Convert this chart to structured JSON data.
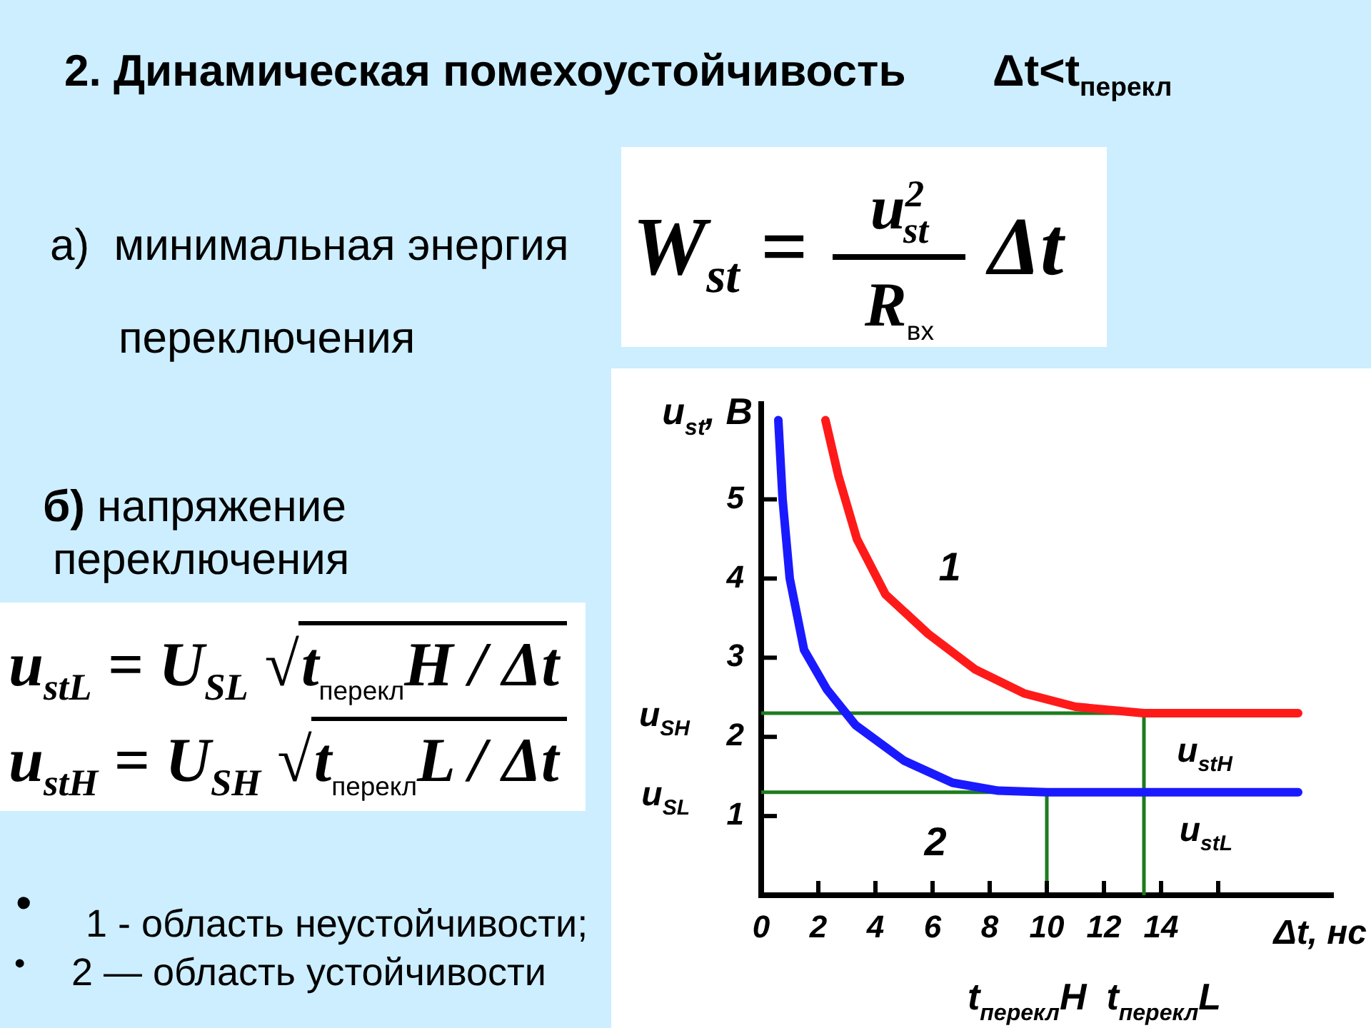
{
  "chart_data": {
    "type": "line",
    "title": "2. Динамическая помехоустойчивость",
    "subtitle": "Δt<t$_{перекл}$",
    "xlabel": "Δt, нс",
    "ylabel": "u$_{st}$, В",
    "xlim": [
      0,
      20
    ],
    "xticks": [
      0,
      2,
      4,
      6,
      8,
      10,
      12,
      14,
      {
        "value": 16,
        "label": null
      }
    ],
    "ylim": [
      0,
      6.2
    ],
    "yticks": [
      1,
      2,
      3,
      4,
      5
    ],
    "grid": false,
    "legend": false,
    "marker": "none",
    "series": [
      {
        "name": "u$_{stH}$",
        "color": "#ff1a1a",
        "x": [
          2.25,
          2.7,
          3.35,
          4.35,
          5.85,
          7.5,
          9.2,
          11,
          13.4,
          18.8
        ],
        "values": [
          6.0,
          5.3,
          4.5,
          3.8,
          3.3,
          2.85,
          2.55,
          2.38,
          2.3,
          2.3
        ]
      },
      {
        "name": "u$_{stL}$",
        "color": "#1a1aff",
        "x": [
          0.6,
          0.75,
          1.0,
          1.5,
          2.3,
          3.3,
          5,
          6.7,
          8.3,
          10,
          18.8
        ],
        "values": [
          6.0,
          5.0,
          4.0,
          3.1,
          2.6,
          2.15,
          1.7,
          1.42,
          1.32,
          1.3,
          1.3
        ]
      },
      {
        "color": "#1e7b1e",
        "x": [
          0,
          13.4,
          13.4
        ],
        "values": [
          2.3,
          2.3,
          0
        ]
      },
      {
        "color": "#1e7b1e",
        "x": [
          0,
          10,
          10
        ],
        "values": [
          1.3,
          1.3,
          0
        ]
      }
    ],
    "annotations": [
      "а)  минимальная энергия",
      "переключения",
      "б)",
      "напряжение",
      "переключения",
      "W$_{st}$ =",
      "u$^{2}$$_{st}$",
      "R$_{вх}$",
      "Δt",
      "u$_{stL}$ = U$_{SL}$ √",
      "t$_{перекл}$H / Δt",
      "u$_{stH}$ = U$_{SH}$ √",
      "t$_{перекл}$L / Δt",
      "•",
      "1 - область неустойчивости;",
      "•",
      "2 — область устойчивости",
      "1",
      "2",
      {
        "text": "u$_{SH}$",
        "x": 0,
        "y": 2.3
      },
      {
        "text": "u$_{SL}$",
        "x": 0,
        "y": 1.3
      },
      {
        "text": "t$_{перекл}$H",
        "x": 10,
        "y": 0
      },
      {
        "text": "t$_{перекл}$L",
        "x": 13.4,
        "y": 0
      }
    ]
  }
}
